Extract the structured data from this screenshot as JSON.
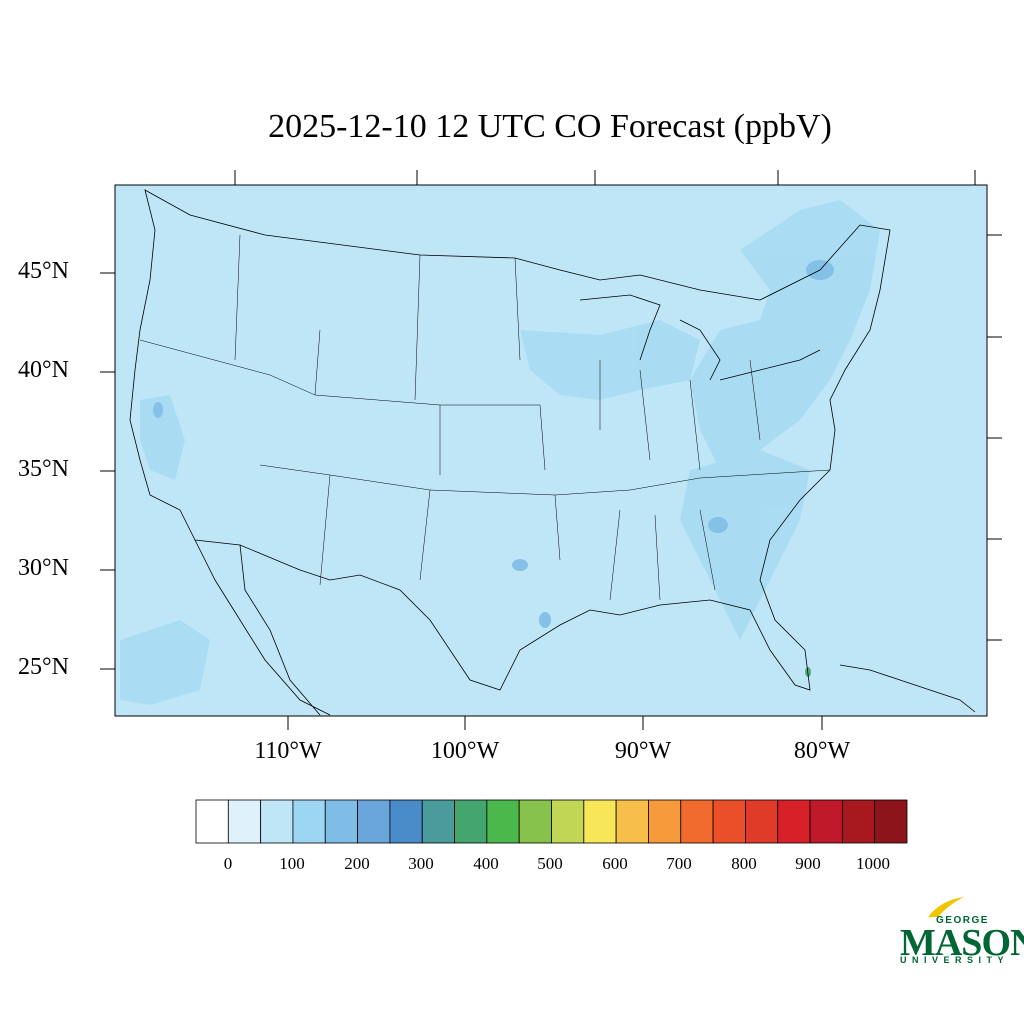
{
  "title": "2025-12-10 12 UTC CO Forecast (ppbV)",
  "map": {
    "background_color": "#bfe6f7",
    "lat_labels": [
      "45°N",
      "40°N",
      "35°N",
      "30°N",
      "25°N"
    ],
    "lon_labels": [
      "110°W",
      "100°W",
      "90°W",
      "80°W"
    ]
  },
  "colorbar": {
    "colors": [
      "#ffffff",
      "#dff2fb",
      "#bfe6f7",
      "#9dd6f2",
      "#7fbde6",
      "#6aa6db",
      "#4a8bc9",
      "#4a9b9b",
      "#45a56e",
      "#4ab84a",
      "#86c24c",
      "#c2d656",
      "#f6e658",
      "#f7be4a",
      "#f69a3c",
      "#f26b2e",
      "#ea4f2a",
      "#e03a28",
      "#d82028",
      "#c0192a",
      "#a8181f",
      "#8e141b"
    ],
    "labels": [
      "0",
      "100",
      "200",
      "300",
      "400",
      "500",
      "600",
      "700",
      "800",
      "900",
      "1000"
    ]
  },
  "logo": {
    "top": "GEORGE",
    "main": "MASON",
    "bottom": "UNIVERSITY"
  }
}
